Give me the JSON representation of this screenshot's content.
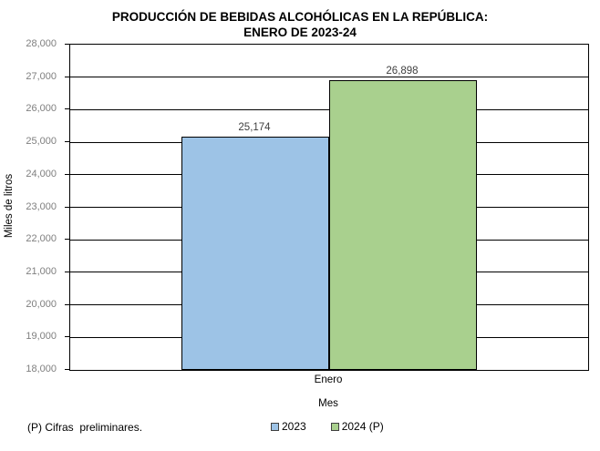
{
  "title": {
    "line1": "PRODUCCIÓN DE BEBIDAS ALCOHÓLICAS EN LA REPÚBLICA:",
    "line2": "ENERO DE 2023-24"
  },
  "chart_data": {
    "type": "bar",
    "categories": [
      "Enero"
    ],
    "series": [
      {
        "name": "2023",
        "values": [
          25174
        ],
        "color": "#9DC3E6",
        "data_label": "25,174"
      },
      {
        "name": "2024 (P)",
        "values": [
          26898
        ],
        "color": "#A9D08E",
        "data_label": "26,898"
      }
    ],
    "title": "PRODUCCIÓN DE BEBIDAS ALCOHÓLICAS EN LA REPÚBLICA: ENERO DE 2023-24",
    "xlabel": "Mes",
    "ylabel": "Miles de litros",
    "ylim": [
      18000,
      28000
    ],
    "ytick_step": 1000,
    "ytick_labels": [
      "18,000",
      "19,000",
      "20,000",
      "21,000",
      "22,000",
      "23,000",
      "24,000",
      "25,000",
      "26,000",
      "27,000",
      "28,000"
    ],
    "grid": "horizontal",
    "legend_position": "bottom"
  },
  "footnote": "(P) Cifras  preliminares.",
  "colors": {
    "bar_border": "#000000",
    "gridline": "#000000",
    "tick_label": "#7F7F7F"
  }
}
